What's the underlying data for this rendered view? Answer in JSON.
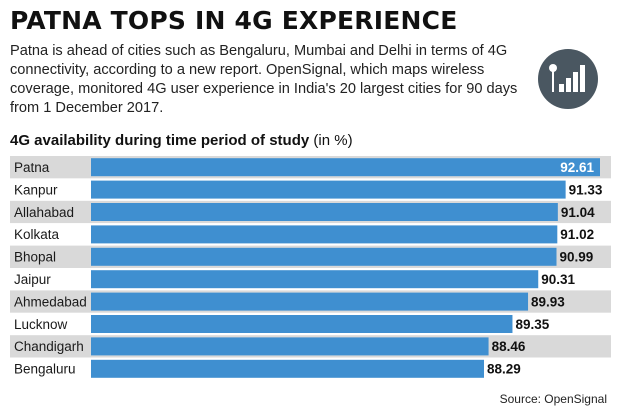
{
  "header": {
    "title": "PATNA TOPS IN 4G EXPERIENCE",
    "intro": "Patna is ahead of cities such as Bengaluru, Mumbai and Delhi in terms of 4G connectivity, according to a new report. OpenSignal, which maps wireless coverage, monitored 4G user experience in India's 20 largest cities for 90 days from 1 December 2017."
  },
  "icon": "signal-bars-icon",
  "colors": {
    "bar": "#3f8fd0",
    "row_alt": "#d9d9d9",
    "row_base": "#ffffff",
    "icon_bg": "#4a5761",
    "value_highlight": "#ffffff",
    "value_default": "#111111"
  },
  "chart_data": {
    "type": "bar",
    "orientation": "horizontal",
    "title": "4G availability during time period of study",
    "unit_label": "(in %)",
    "categories": [
      "Patna",
      "Kanpur",
      "Allahabad",
      "Kolkata",
      "Bhopal",
      "Jaipur",
      "Ahmedabad",
      "Lucknow",
      "Chandigarh",
      "Bengaluru"
    ],
    "values": [
      92.61,
      91.33,
      91.04,
      91.02,
      90.99,
      90.31,
      89.93,
      89.35,
      88.46,
      88.29
    ],
    "value_labels": [
      "92.61",
      "91.33",
      "91.04",
      "91.02",
      "90.99",
      "90.31",
      "89.93",
      "89.35",
      "88.46",
      "88.29"
    ],
    "axis_visible": false,
    "grid": false,
    "legend": "none"
  },
  "source": "Source: OpenSignal"
}
